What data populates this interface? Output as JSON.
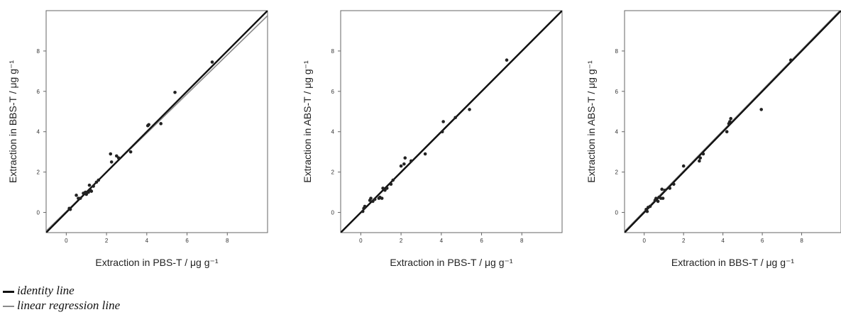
{
  "legend": {
    "identity_label": "identity line",
    "regression_label": "linear regression line"
  },
  "colors": {
    "identity": "#111111",
    "regression": "#8a8a8a",
    "points": "#222222",
    "frame": "#666666"
  },
  "chart_data": [
    {
      "type": "scatter",
      "xlabel": "Extraction in PBS-T / μg g⁻¹",
      "ylabel": "Extraction in BBS-T / μg g⁻¹",
      "xlim": [
        -1,
        10
      ],
      "ylim": [
        -1,
        10
      ],
      "xticks": [
        0,
        2,
        4,
        6,
        8
      ],
      "yticks": [
        0,
        2,
        4,
        6,
        8
      ],
      "identity_line": {
        "slope": 1,
        "intercept": 0
      },
      "regression_line": {
        "slope": 0.97,
        "intercept": 0.05
      },
      "points": {
        "x": [
          0.15,
          0.2,
          0.5,
          0.6,
          0.7,
          0.85,
          0.95,
          1.0,
          1.1,
          1.15,
          1.2,
          1.25,
          1.35,
          1.5,
          1.6,
          2.2,
          2.25,
          2.5,
          2.6,
          3.2,
          4.05,
          4.1,
          4.7,
          5.4,
          7.25
        ],
        "y": [
          0.2,
          0.15,
          0.85,
          0.7,
          0.7,
          0.95,
          1.0,
          0.9,
          1.0,
          1.35,
          1.1,
          1.05,
          1.3,
          1.5,
          1.6,
          2.9,
          2.5,
          2.8,
          2.7,
          3.0,
          4.3,
          4.35,
          4.4,
          5.95,
          7.45
        ]
      }
    },
    {
      "type": "scatter",
      "xlabel": "Extraction in PBS-T / μg g⁻¹",
      "ylabel": "Extraction in ABS-T / μg g⁻¹",
      "xlim": [
        -1,
        10
      ],
      "ylim": [
        -1,
        10
      ],
      "xticks": [
        0,
        2,
        4,
        6,
        8
      ],
      "yticks": [
        0,
        2,
        4,
        6,
        8
      ],
      "identity_line": {
        "slope": 1,
        "intercept": 0
      },
      "regression_line": {
        "slope": 1.0,
        "intercept": -0.03
      },
      "points": {
        "x": [
          0.1,
          0.15,
          0.2,
          0.45,
          0.5,
          0.6,
          0.7,
          0.9,
          0.95,
          1.05,
          1.1,
          1.2,
          1.3,
          1.5,
          1.6,
          2.0,
          2.15,
          2.2,
          2.5,
          3.2,
          4.05,
          4.1,
          4.7,
          5.4,
          7.25
        ],
        "y": [
          0.05,
          0.2,
          0.3,
          0.6,
          0.7,
          0.55,
          0.65,
          0.7,
          0.75,
          0.7,
          1.2,
          1.1,
          1.2,
          1.4,
          1.6,
          2.3,
          2.4,
          2.7,
          2.55,
          2.9,
          4.0,
          4.5,
          4.7,
          5.1,
          7.55
        ]
      }
    },
    {
      "type": "scatter",
      "xlabel": "Extraction in BBS-T / μg g⁻¹",
      "ylabel": "Extraction in ABS-T / μg g⁻¹",
      "xlim": [
        -1,
        10
      ],
      "ylim": [
        -1,
        10
      ],
      "xticks": [
        0,
        2,
        4,
        6,
        8
      ],
      "yticks": [
        0,
        2,
        4,
        6,
        8
      ],
      "identity_line": {
        "slope": 1,
        "intercept": 0
      },
      "regression_line": {
        "slope": 1.0,
        "intercept": 0.06
      },
      "points": {
        "x": [
          0.1,
          0.15,
          0.2,
          0.3,
          0.55,
          0.6,
          0.7,
          0.75,
          0.85,
          0.9,
          0.95,
          1.05,
          1.3,
          1.5,
          2.0,
          2.8,
          2.85,
          3.0,
          4.2,
          4.3,
          4.35,
          4.4,
          5.95,
          7.45
        ],
        "y": [
          0.15,
          0.05,
          0.25,
          0.3,
          0.6,
          0.7,
          0.55,
          0.75,
          0.7,
          1.15,
          0.7,
          1.1,
          1.2,
          1.4,
          2.3,
          2.55,
          2.7,
          2.9,
          4.0,
          4.4,
          4.5,
          4.65,
          5.1,
          7.55
        ]
      }
    }
  ]
}
